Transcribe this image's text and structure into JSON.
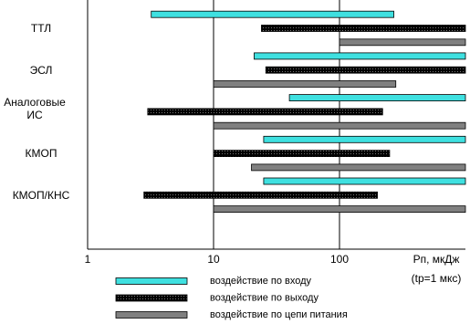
{
  "chart_data": {
    "type": "floating-bar",
    "orientation": "horizontal",
    "log_x": true,
    "categories": [
      "ТТЛ",
      "ЭСЛ",
      "Аналоговые ИС",
      "КМОП",
      "КМОП/КНС"
    ],
    "series": [
      {
        "name": "воздействие по входу",
        "color": "#3fe0e0",
        "values": [
          [
            3.2,
            270
          ],
          [
            21,
            1000
          ],
          [
            40,
            1000
          ],
          [
            25,
            1000
          ],
          [
            25,
            1000
          ]
        ]
      },
      {
        "name": "воздействие по выходу",
        "color": "#e6e65a",
        "values": [
          [
            24,
            1000
          ],
          [
            26,
            1000
          ],
          [
            3,
            220
          ],
          [
            10,
            250
          ],
          [
            2.8,
            200
          ]
        ]
      },
      {
        "name": "воздействие по цепи питания",
        "color": "#808080",
        "values": [
          [
            100,
            1000
          ],
          [
            10,
            280
          ],
          [
            10,
            1000
          ],
          [
            20,
            1000
          ],
          [
            10,
            1000
          ]
        ]
      }
    ],
    "xlim": [
      1,
      1000
    ],
    "xticks": [
      1,
      10,
      100
    ],
    "grid": true,
    "x_label": "Pп, мкДж",
    "x_label_note": "(tp=1 мкс)"
  }
}
